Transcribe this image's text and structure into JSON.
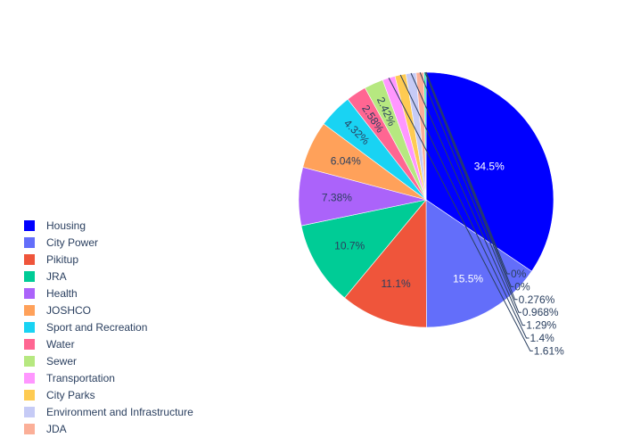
{
  "chart_data": {
    "type": "pie",
    "title": "",
    "sort": "descending",
    "direction": "clockwise",
    "slices": [
      {
        "label": "Housing",
        "percent": 34.5,
        "text": "34.5%",
        "color": "#0000ff",
        "text_color": "#ffffff",
        "text_position": "inside"
      },
      {
        "label": "City Power",
        "percent": 15.5,
        "text": "15.5%",
        "color": "#636efa",
        "text_color": "#ffffff",
        "text_position": "inside"
      },
      {
        "label": "Pikitup",
        "percent": 11.1,
        "text": "11.1%",
        "color": "#ef553b",
        "text_color": "#2a3f5f",
        "text_position": "inside"
      },
      {
        "label": "JRA",
        "percent": 10.7,
        "text": "10.7%",
        "color": "#00cc96",
        "text_color": "#2a3f5f",
        "text_position": "inside"
      },
      {
        "label": "Health",
        "percent": 7.38,
        "text": "7.38%",
        "color": "#ab63fa",
        "text_color": "#2a3f5f",
        "text_position": "inside"
      },
      {
        "label": "JOSHCO",
        "percent": 6.04,
        "text": "6.04%",
        "color": "#ffa15a",
        "text_color": "#2a3f5f",
        "text_position": "inside"
      },
      {
        "label": "Sport and Recreation",
        "percent": 4.32,
        "text": "4.32%",
        "color": "#19d3f3",
        "text_color": "#2a3f5f",
        "text_position": "inside-radial"
      },
      {
        "label": "Water",
        "percent": 2.58,
        "text": "2.58%",
        "color": "#ff6692",
        "text_color": "#2a3f5f",
        "text_position": "inside-radial"
      },
      {
        "label": "Sewer",
        "percent": 2.42,
        "text": "2.42%",
        "color": "#b6e880",
        "text_color": "#2a3f5f",
        "text_position": "inside-radial"
      },
      {
        "label": "Transportation",
        "percent": 1.61,
        "text": "1.61%",
        "color": "#ff97ff",
        "text_color": "#2a3f5f",
        "text_position": "outside"
      },
      {
        "label": "City Parks",
        "percent": 1.4,
        "text": "1.4%",
        "color": "#fecb52",
        "text_color": "#2a3f5f",
        "text_position": "outside"
      },
      {
        "label": "Environment and Infrastructure",
        "percent": 1.29,
        "text": "1.29%",
        "color": "#c6cbf6",
        "text_color": "#2a3f5f",
        "text_position": "outside"
      },
      {
        "label": "JDA",
        "percent": 0.968,
        "text": "0.968%",
        "color": "#fbaf98",
        "text_color": "#2a3f5f",
        "text_position": "outside"
      },
      {
        "label": "",
        "percent": 0.276,
        "text": "0.276%",
        "color": "#2ee3bc",
        "text_color": "#2a3f5f",
        "text_position": "outside"
      },
      {
        "label": "",
        "percent": 0,
        "text": "0%",
        "color": "#d3a1f8",
        "text_color": "#2a3f5f",
        "text_position": "outside"
      },
      {
        "label": "",
        "percent": 0,
        "text": "0%",
        "color": "#fbc29a",
        "text_color": "#2a3f5f",
        "text_position": "outside"
      }
    ],
    "legend": {
      "placement": "bottom-left",
      "entries": [
        "Housing",
        "City Power",
        "Pikitup",
        "JRA",
        "Health",
        "JOSHCO",
        "Sport and Recreation",
        "Water",
        "Sewer",
        "Transportation",
        "City Parks",
        "Environment and Infrastructure",
        "JDA"
      ]
    }
  }
}
